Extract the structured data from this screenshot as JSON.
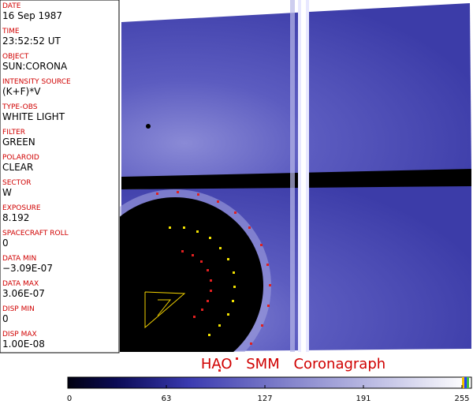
{
  "fields": [
    {
      "label": "DATE",
      "value": "16 Sep 1987"
    },
    {
      "label": "TIME",
      "value": "23:52:52 UT"
    },
    {
      "label": "OBJECT",
      "value": "SUN:CORONA"
    },
    {
      "label": "INTENSITY SOURCE",
      "value": "(K+F)*V"
    },
    {
      "label": "TYPE-OBS",
      "value": "WHITE LIGHT"
    },
    {
      "label": "FILTER",
      "value": "GREEN"
    },
    {
      "label": "POLAROID",
      "value": "CLEAR"
    },
    {
      "label": "SECTOR",
      "value": "W"
    },
    {
      "label": "EXPOSURE",
      "value": "8.192"
    },
    {
      "label": "SPACECRAFT ROLL",
      "value": "0"
    },
    {
      "label": "DATA MIN",
      "value": "−3.09E-07"
    },
    {
      "label": "DATA MAX",
      "value": "3.06E-07"
    },
    {
      "label": "DISP MIN",
      "value": "0"
    },
    {
      "label": "DISP MAX",
      "value": "1.00E-08"
    }
  ],
  "image_title": "HAO SMM Coronagraph",
  "colorbar": {
    "range": [
      0,
      255
    ],
    "ticks": [
      0,
      63,
      127,
      191,
      255
    ]
  }
}
